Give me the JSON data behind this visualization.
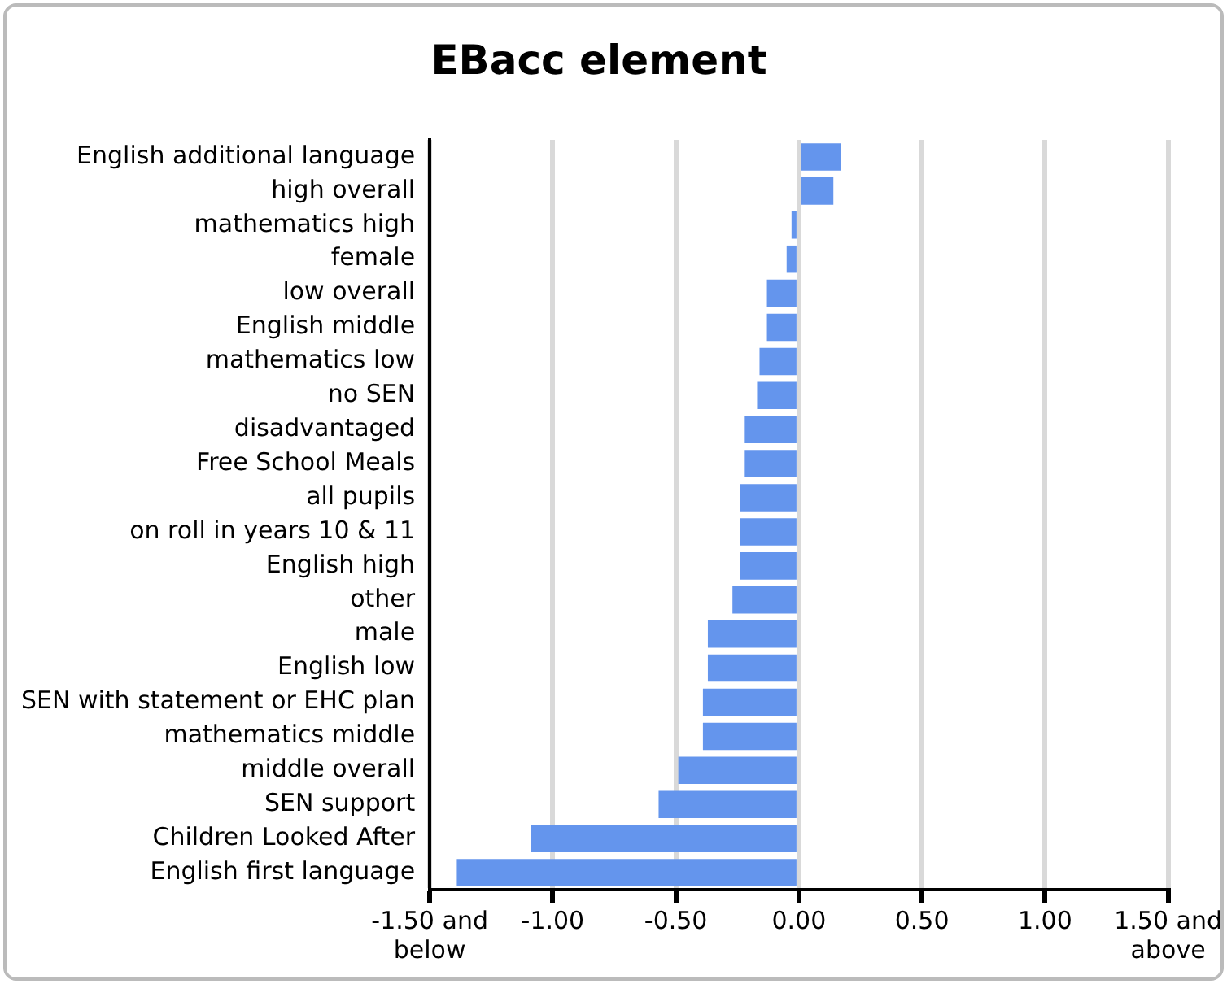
{
  "chart_data": {
    "type": "bar",
    "title": "EBacc element",
    "orientation": "horizontal",
    "categories": [
      "English additional language",
      "high overall",
      "mathematics high",
      "female",
      "low overall",
      "English middle",
      "mathematics low",
      "no SEN",
      "disadvantaged",
      "Free School Meals",
      "all pupils",
      "on roll in years 10 & 11",
      "English high",
      "other",
      "male",
      "English low",
      "SEN with statement or EHC plan",
      "mathematics middle",
      "middle overall",
      "SEN support",
      "Children Looked After",
      "English first language"
    ],
    "values": [
      0.17,
      0.14,
      -0.03,
      -0.05,
      -0.13,
      -0.13,
      -0.16,
      -0.17,
      -0.22,
      -0.22,
      -0.24,
      -0.24,
      -0.24,
      -0.27,
      -0.37,
      -0.37,
      -0.39,
      -0.39,
      -0.49,
      -0.57,
      -1.09,
      -1.39
    ],
    "color": "#6495ed",
    "xlim": [
      -1.5,
      1.5
    ],
    "xticks": [
      {
        "value": -1.5,
        "label": "-1.50 and\nbelow"
      },
      {
        "value": -1,
        "label": "-1.00"
      },
      {
        "value": -0.5,
        "label": "-0.50"
      },
      {
        "value": 0,
        "label": "0.00"
      },
      {
        "value": 0.5,
        "label": "0.50"
      },
      {
        "value": 1,
        "label": "1.00"
      },
      {
        "value": 1.5,
        "label": "1.50 and\nabove"
      }
    ],
    "grid": "x",
    "legend": false
  }
}
